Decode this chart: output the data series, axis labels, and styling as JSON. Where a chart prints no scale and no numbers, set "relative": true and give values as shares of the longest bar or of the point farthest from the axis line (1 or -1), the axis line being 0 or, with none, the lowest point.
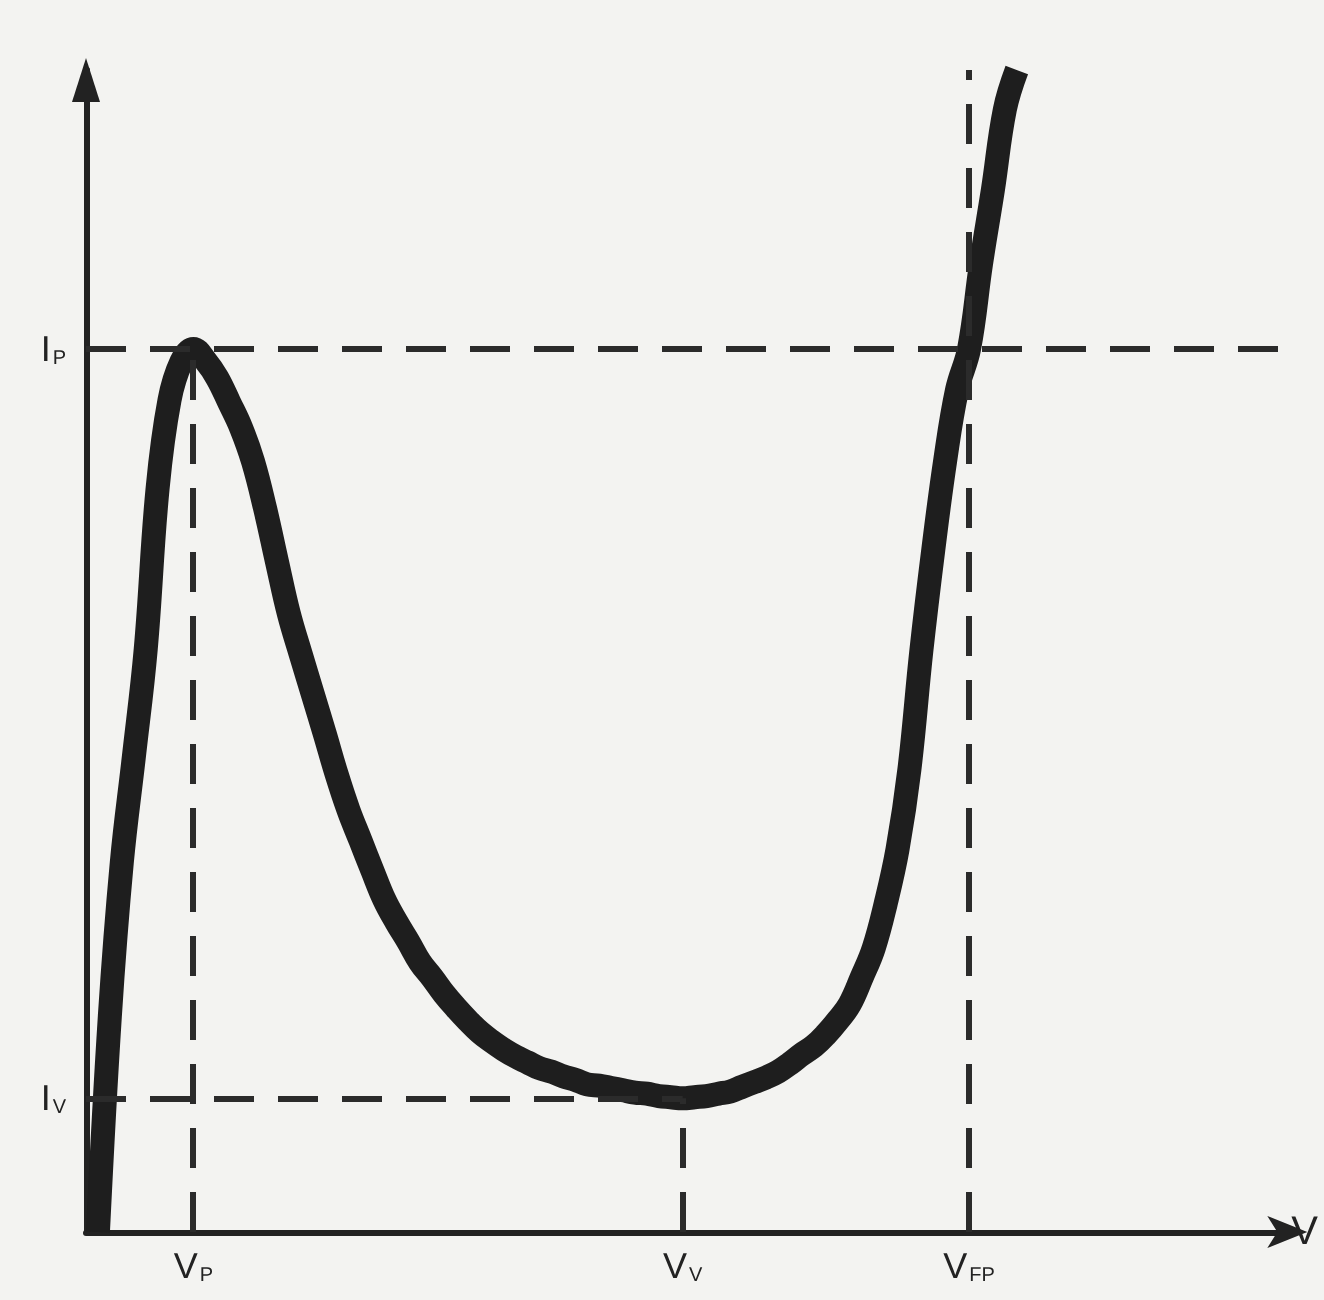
{
  "chart_data": {
    "type": "line",
    "relative": true,
    "xlabel": "V",
    "color": "#1e1e1e",
    "categories": [
      null,
      null,
      null,
      null,
      null,
      null,
      null,
      null,
      null,
      "V$_{P}$",
      null,
      null,
      null,
      null,
      null,
      null,
      null,
      null,
      null,
      null,
      null,
      null,
      null,
      null,
      null,
      null,
      null,
      null,
      null,
      null,
      null,
      null,
      null,
      null,
      null,
      null,
      null,
      null,
      null,
      null,
      null,
      null,
      null,
      null,
      null,
      null,
      null,
      null,
      null,
      null,
      "V$_{V}$",
      null,
      null,
      null,
      null,
      null,
      null,
      null,
      null,
      null,
      null,
      null,
      null,
      null,
      null,
      null,
      null,
      null,
      null,
      null,
      null,
      null,
      null,
      null,
      "V$_{FP}$",
      null,
      null,
      null,
      null,
      null,
      null,
      null,
      null,
      null,
      null,
      null,
      null,
      null,
      null,
      null,
      null,
      null,
      null,
      null,
      null,
      null,
      null,
      null,
      null,
      null,
      null
    ],
    "values": [
      null,
      0,
      0.186,
      0.318,
      0.408,
      0.501,
      0.64,
      0.716,
      0.749,
      0.76,
      0.75,
      0.735,
      0.714,
      0.692,
      0.663,
      0.623,
      0.577,
      0.532,
      0.497,
      0.463,
      0.429,
      0.394,
      0.363,
      0.337,
      0.311,
      0.286,
      0.267,
      0.25,
      0.232,
      0.219,
      0.205,
      0.193,
      0.182,
      0.172,
      0.164,
      0.157,
      0.151,
      0.146,
      0.141,
      0.138,
      0.134,
      0.131,
      0.127,
      0.126,
      0.124,
      0.122,
      0.12,
      0.119,
      0.117,
      0.116,
      0.115,
      0.116,
      0.117,
      0.119,
      0.121,
      0.125,
      0.129,
      0.133,
      0.138,
      0.145,
      0.153,
      0.16,
      0.17,
      0.182,
      0.196,
      0.219,
      0.244,
      0.282,
      0.329,
      0.398,
      0.5,
      0.587,
      0.664,
      0.725,
      0.76,
      0.833,
      0.897,
      0.966,
      1,
      null,
      null,
      null,
      null,
      null,
      null,
      null,
      null,
      null,
      null,
      null,
      null,
      null,
      null,
      null,
      null,
      null,
      null,
      null,
      null,
      null,
      null
    ],
    "ref_lines": [
      {
        "axis": "y",
        "value": 0.76,
        "label": "I$_{P}$",
        "color": "#2b2b2b",
        "line_style": "dashed"
      },
      {
        "axis": "y",
        "value": 0.115,
        "label": "I$_{V}$",
        "color": "#2b2b2b",
        "line_style": "dashed"
      },
      {
        "axis": "x",
        "value": "V$_{P}$",
        "color": "#2b2b2b",
        "line_style": "dashed"
      },
      {
        "axis": "x",
        "value": "V$_{V}$",
        "color": "#2b2b2b",
        "line_style": "dashed"
      },
      {
        "axis": "x",
        "value": "V$_{FP}$",
        "color": "#2b2b2b",
        "line_style": "dashed"
      }
    ]
  }
}
